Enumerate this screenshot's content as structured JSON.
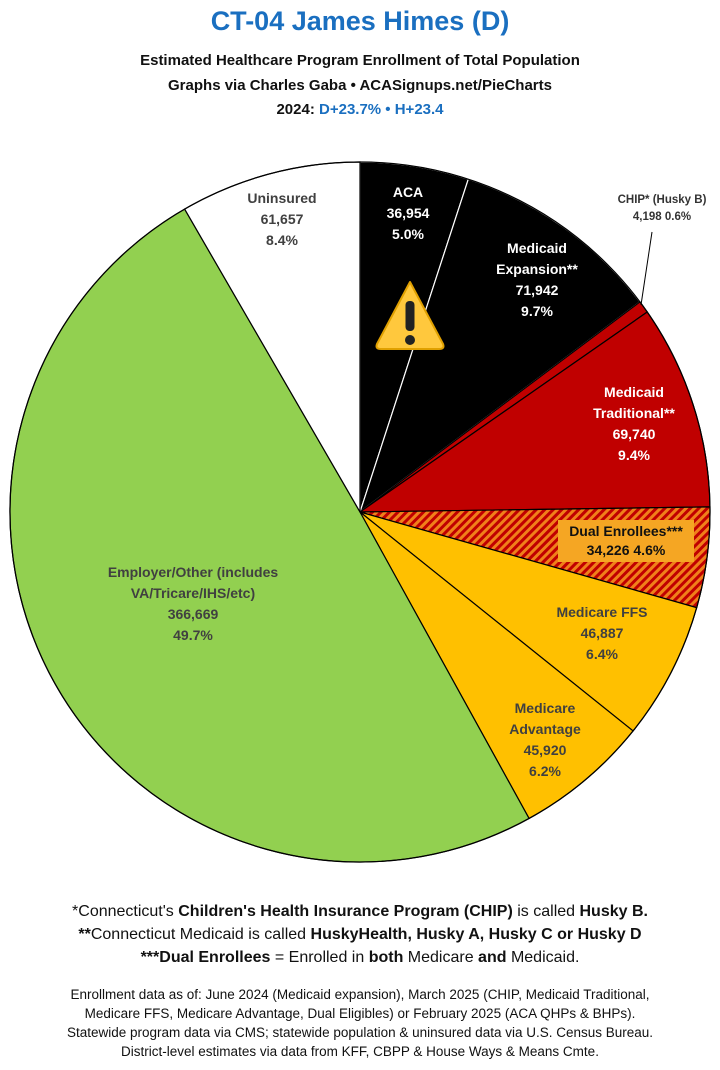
{
  "chart_data": {
    "type": "pie",
    "title": "CT-04 James Himes (D)",
    "subtitle": "Estimated Healthcare Program Enrollment of Total Population",
    "credit": "Graphs via Charles Gaba  •  ACASignups.net/PieCharts",
    "election_label": "2024:",
    "election_result": "D+23.7%  •  H+23.4",
    "categories": [
      "ACA",
      "Medicaid Expansion**",
      "CHIP* (Husky B)",
      "Medicaid Traditional**",
      "Dual Enrollees***",
      "Medicare FFS",
      "Medicare Advantage",
      "Employer/Other (includes VA/Tricare/IHS/etc)",
      "Uninsured"
    ],
    "values": [
      36954,
      71942,
      4198,
      69740,
      34226,
      46887,
      45920,
      366669,
      61657
    ],
    "value_labels": [
      "36,954",
      "71,942",
      "4,198",
      "69,740",
      "34,226",
      "46,887",
      "45,920",
      "366,669",
      "61,657"
    ],
    "percent_labels": [
      "5.0%",
      "9.7%",
      "0.6%",
      "9.4%",
      "4.6%",
      "6.4%",
      "6.2%",
      "49.7%",
      "8.4%"
    ],
    "colors": [
      "#000000",
      "#000000",
      "#c00000",
      "#c00000",
      "#f0801a",
      "#ffc000",
      "#ffc000",
      "#92d050",
      "#ffffff"
    ],
    "hatch": [
      null,
      null,
      null,
      null,
      "#c00000",
      null,
      null,
      null,
      null
    ],
    "footnotes": [
      [
        {
          "text": "*Connecticut's ",
          "bold": false
        },
        {
          "text": "Children's Health Insurance Program (CHIP)",
          "bold": true
        },
        {
          "text": " is called ",
          "bold": false
        },
        {
          "text": "Husky B.",
          "bold": true
        }
      ],
      [
        {
          "text": "**",
          "bold": true
        },
        {
          "text": "Connecticut Medicaid is called ",
          "bold": false
        },
        {
          "text": "HuskyHealth, Husky A, Husky C or Husky D",
          "bold": true
        }
      ],
      [
        {
          "text": "***Dual Enrollees",
          "bold": true
        },
        {
          "text": " = Enrolled in ",
          "bold": false
        },
        {
          "text": "both",
          "bold": true
        },
        {
          "text": " Medicare ",
          "bold": false
        },
        {
          "text": "and",
          "bold": true
        },
        {
          "text": " Medicaid.",
          "bold": false
        }
      ]
    ],
    "sources": [
      "Enrollment data as of: June 2024 (Medicaid expansion), March 2025 (CHIP, Medicaid Traditional,",
      "Medicare FFS, Medicare Advantage, Dual Eligibles) or February 2025 (ACA QHPs & BHPs).",
      "Statewide program data via CMS; statewide population & uninsured data via U.S. Census Bureau.",
      "District-level estimates via data from KFF, CBPP & House Ways & Means Cmte."
    ]
  }
}
